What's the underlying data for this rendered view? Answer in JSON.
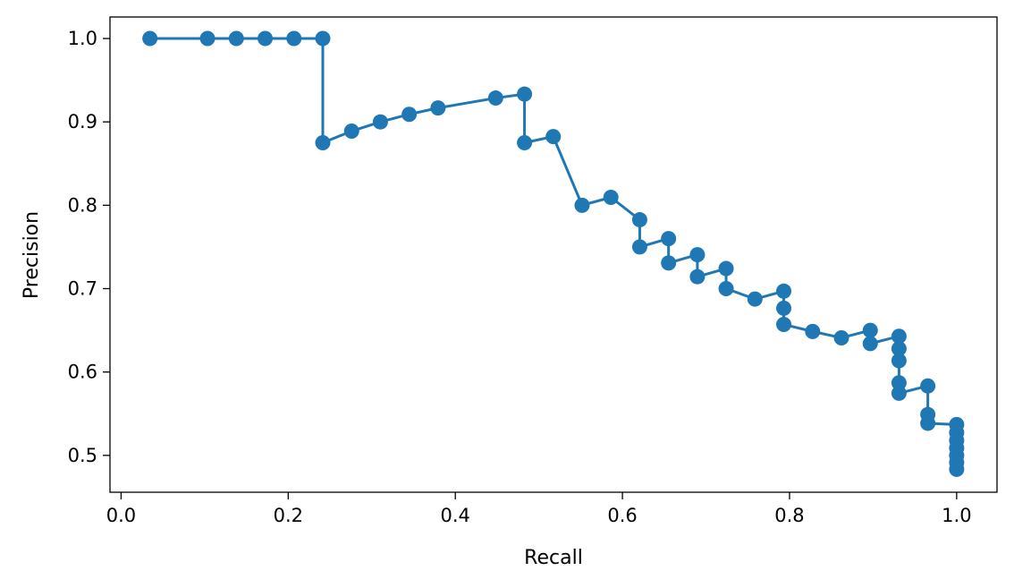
{
  "chart_data": {
    "type": "line",
    "xlabel": "Recall",
    "ylabel": "Precision",
    "xlim": [
      -0.0133,
      1.0483
    ],
    "ylim": [
      0.4558,
      1.0258
    ],
    "xticks": [
      0.0,
      0.2,
      0.4,
      0.6,
      0.8,
      1.0
    ],
    "xtick_labels": [
      "0.0",
      "0.2",
      "0.4",
      "0.6",
      "0.8",
      "1.0"
    ],
    "yticks": [
      0.5,
      0.6,
      0.7,
      0.8,
      0.9,
      1.0
    ],
    "ytick_labels": [
      "0.5",
      "0.6",
      "0.7",
      "0.8",
      "0.9",
      "1.0"
    ],
    "grid": false,
    "series": [
      {
        "color": "#1f77b4",
        "marker": "circle",
        "x": [
          0.0345,
          0.1034,
          0.1379,
          0.1724,
          0.2069,
          0.2414,
          0.2414,
          0.2759,
          0.3103,
          0.3448,
          0.3793,
          0.4483,
          0.4828,
          0.4828,
          0.5172,
          0.5517,
          0.5862,
          0.6207,
          0.6207,
          0.6552,
          0.6552,
          0.6897,
          0.6897,
          0.7241,
          0.7241,
          0.7586,
          0.7931,
          0.7931,
          0.7931,
          0.8276,
          0.8621,
          0.8966,
          0.8966,
          0.931,
          0.931,
          0.931,
          0.931,
          0.931,
          0.9655,
          0.9655,
          0.9655,
          1.0,
          1.0,
          1.0,
          1.0,
          1.0,
          1.0,
          1.0
        ],
        "y": [
          1.0,
          1.0,
          1.0,
          1.0,
          1.0,
          1.0,
          0.875,
          0.8889,
          0.9,
          0.9091,
          0.9167,
          0.9286,
          0.9333,
          0.875,
          0.8824,
          0.8,
          0.8095,
          0.7826,
          0.75,
          0.76,
          0.7308,
          0.7407,
          0.7143,
          0.7241,
          0.7,
          0.6875,
          0.697,
          0.6765,
          0.6571,
          0.6486,
          0.641,
          0.65,
          0.6341,
          0.6429,
          0.6279,
          0.6136,
          0.587,
          0.5745,
          0.5833,
          0.549,
          0.5385,
          0.537,
          0.5273,
          0.5179,
          0.5088,
          0.5,
          0.4915,
          0.4833
        ]
      }
    ]
  }
}
